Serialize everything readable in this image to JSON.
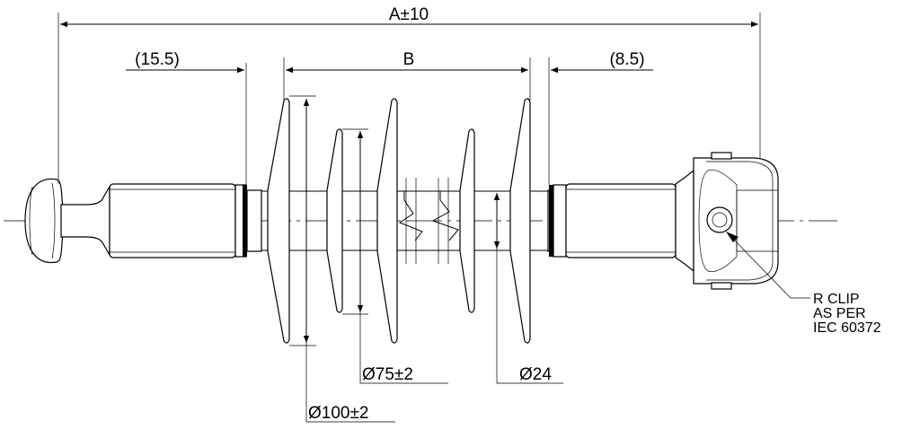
{
  "drawing": {
    "overall_length": "A±10",
    "shed_spacing": "B",
    "ball_end_offset": "(15.5)",
    "clevis_end_offset": "(8.5)",
    "small_shed_diameter": "Ø75±2",
    "core_diameter": "Ø24",
    "large_shed_diameter": "Ø100±2",
    "clip_note": [
      "R CLIP",
      "AS PER",
      "IEC 60372"
    ]
  }
}
